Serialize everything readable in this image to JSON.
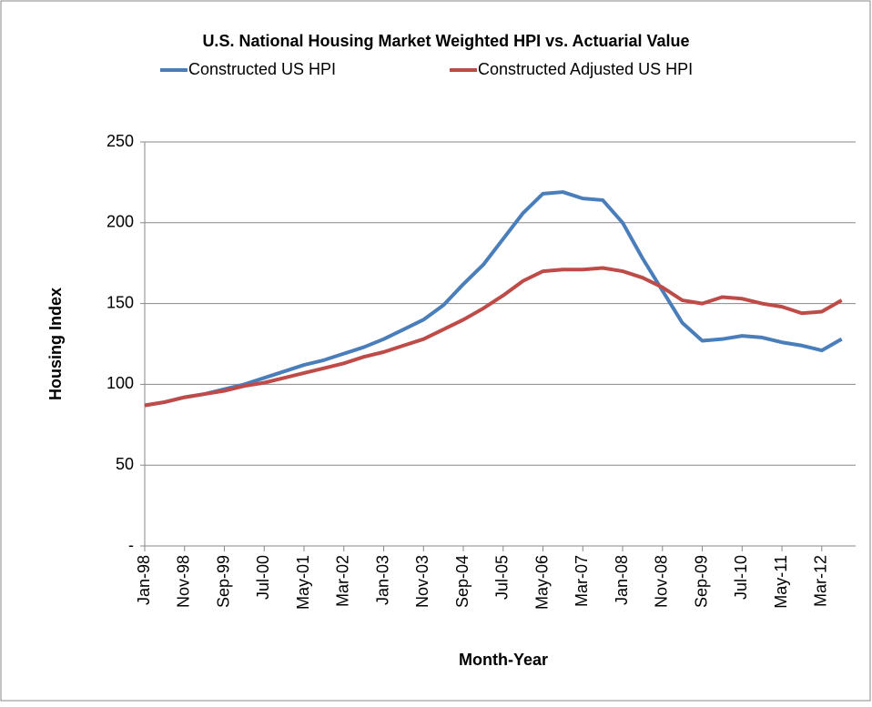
{
  "chart_data": {
    "type": "line",
    "title": "U.S. National Housing Market Weighted HPI vs. Actuarial Value",
    "x_label": "Month-Year",
    "y_label": "Housing Index",
    "categories": [
      "Jan-98",
      null,
      "Nov-98",
      null,
      "Sep-99",
      null,
      "Jul-00",
      null,
      "May-01",
      null,
      "Mar-02",
      null,
      "Jan-03",
      null,
      "Nov-03",
      null,
      "Sep-04",
      null,
      "Jul-05",
      null,
      "May-06",
      null,
      "Mar-07",
      null,
      "Jan-08",
      null,
      "Nov-08",
      null,
      "Sep-09",
      null,
      "Jul-10",
      null,
      "May-11",
      null,
      "Mar-12",
      null
    ],
    "series": [
      {
        "name": "Constructed US HPI",
        "color": "#4a7ebb",
        "values": [
          87,
          89,
          92,
          94,
          97,
          100,
          104,
          108,
          112,
          115,
          119,
          123,
          128,
          134,
          140,
          149,
          162,
          174,
          190,
          206,
          218,
          219,
          215,
          214,
          200,
          178,
          158,
          138,
          127,
          128,
          130,
          129,
          126,
          124,
          121,
          128
        ]
      },
      {
        "name": "Constructed Adjusted US HPI",
        "color": "#be4b48",
        "values": [
          87,
          89,
          92,
          94,
          96,
          99,
          101,
          104,
          107,
          110,
          113,
          117,
          120,
          124,
          128,
          134,
          140,
          147,
          155,
          164,
          170,
          171,
          171,
          172,
          170,
          166,
          160,
          152,
          150,
          154,
          153,
          150,
          148,
          144,
          145,
          152
        ]
      }
    ],
    "ylim": [
      0,
      250
    ],
    "yticks": [
      {
        "value": 0,
        "label": "-"
      },
      50,
      100,
      150,
      200,
      250
    ],
    "grid": true
  }
}
